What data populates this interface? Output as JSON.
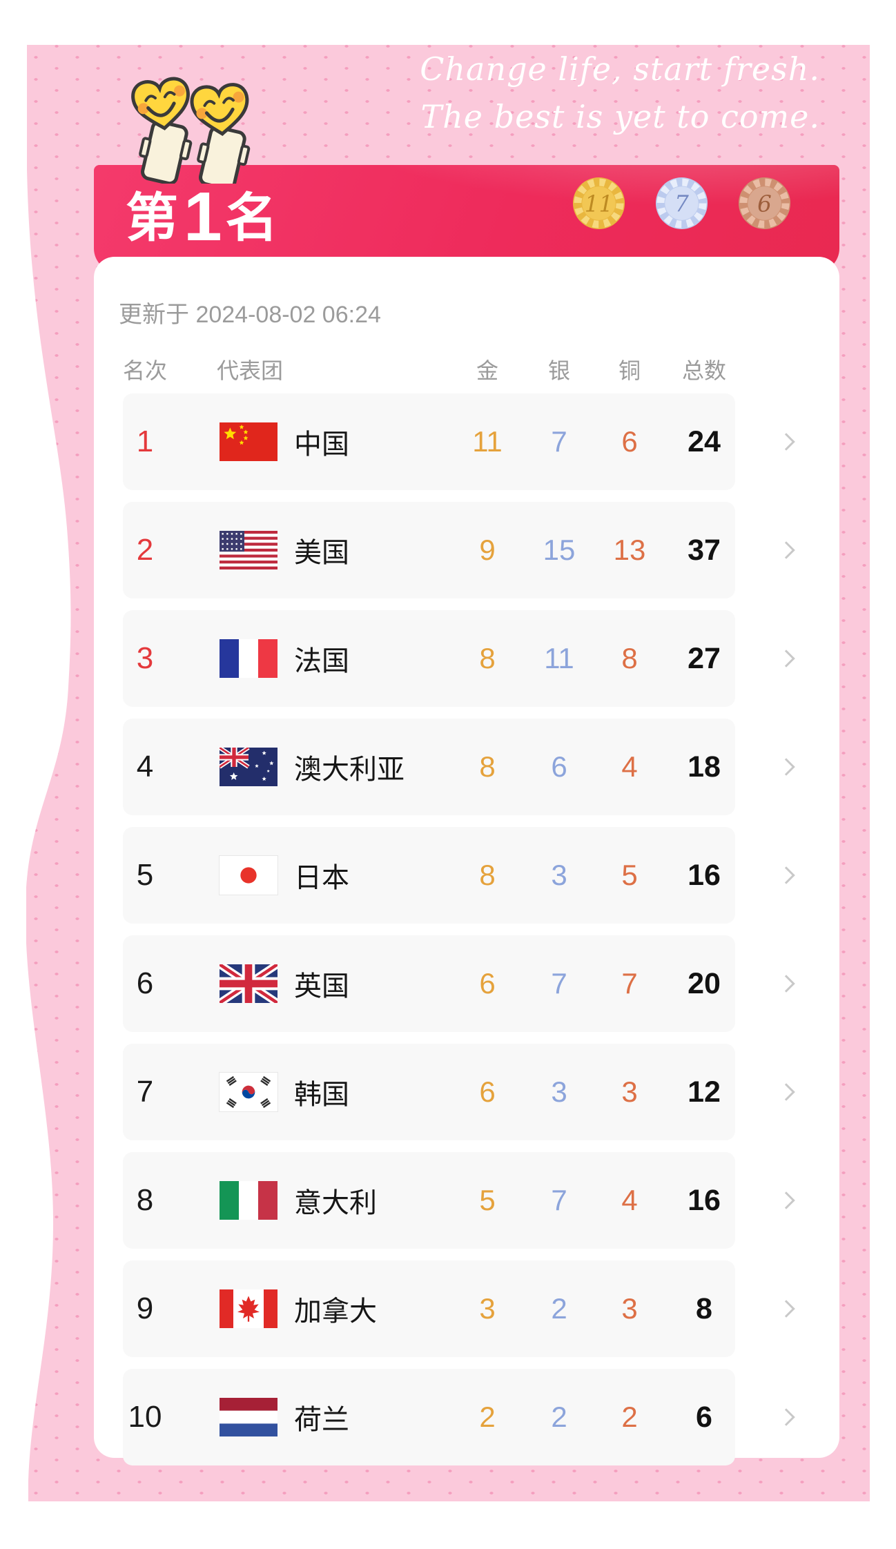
{
  "colors": {
    "pink_background": "#FBC9DB",
    "pink_dot": "#F49EBE",
    "banner_accent": "#EE2B5B",
    "rank_top3": "#E4393C",
    "gold_number": "#E5A23C",
    "silver_number": "#8CA4DB",
    "bronze_number": "#DD7046"
  },
  "motto": {
    "line1": "Change life, start fresh.",
    "line2": "The best is yet to come."
  },
  "banner": {
    "title_prefix": "第",
    "title_number": "1",
    "title_suffix": "名",
    "medals": [
      {
        "type": "gold",
        "count": "11"
      },
      {
        "type": "silver",
        "count": "7"
      },
      {
        "type": "bronze",
        "count": "6"
      }
    ]
  },
  "card": {
    "updated": "更新于 2024-08-02 06:24",
    "columns": {
      "rank": "名次",
      "team": "代表团",
      "gold": "金",
      "silver": "银",
      "bronze": "铜",
      "total": "总数"
    },
    "rows": [
      {
        "rank": "1",
        "country": "中国",
        "flag": "cn",
        "gold": "11",
        "silver": "7",
        "bronze": "6",
        "total": "24"
      },
      {
        "rank": "2",
        "country": "美国",
        "flag": "us",
        "gold": "9",
        "silver": "15",
        "bronze": "13",
        "total": "37"
      },
      {
        "rank": "3",
        "country": "法国",
        "flag": "fr",
        "gold": "8",
        "silver": "11",
        "bronze": "8",
        "total": "27"
      },
      {
        "rank": "4",
        "country": "澳大利亚",
        "flag": "au",
        "gold": "8",
        "silver": "6",
        "bronze": "4",
        "total": "18"
      },
      {
        "rank": "5",
        "country": "日本",
        "flag": "jp",
        "gold": "8",
        "silver": "3",
        "bronze": "5",
        "total": "16"
      },
      {
        "rank": "6",
        "country": "英国",
        "flag": "gb",
        "gold": "6",
        "silver": "7",
        "bronze": "7",
        "total": "20"
      },
      {
        "rank": "7",
        "country": "韩国",
        "flag": "kr",
        "gold": "6",
        "silver": "3",
        "bronze": "3",
        "total": "12"
      },
      {
        "rank": "8",
        "country": "意大利",
        "flag": "it",
        "gold": "5",
        "silver": "7",
        "bronze": "4",
        "total": "16"
      },
      {
        "rank": "9",
        "country": "加拿大",
        "flag": "ca",
        "gold": "3",
        "silver": "2",
        "bronze": "3",
        "total": "8"
      },
      {
        "rank": "10",
        "country": "荷兰",
        "flag": "nl",
        "gold": "2",
        "silver": "2",
        "bronze": "2",
        "total": "6"
      }
    ]
  }
}
